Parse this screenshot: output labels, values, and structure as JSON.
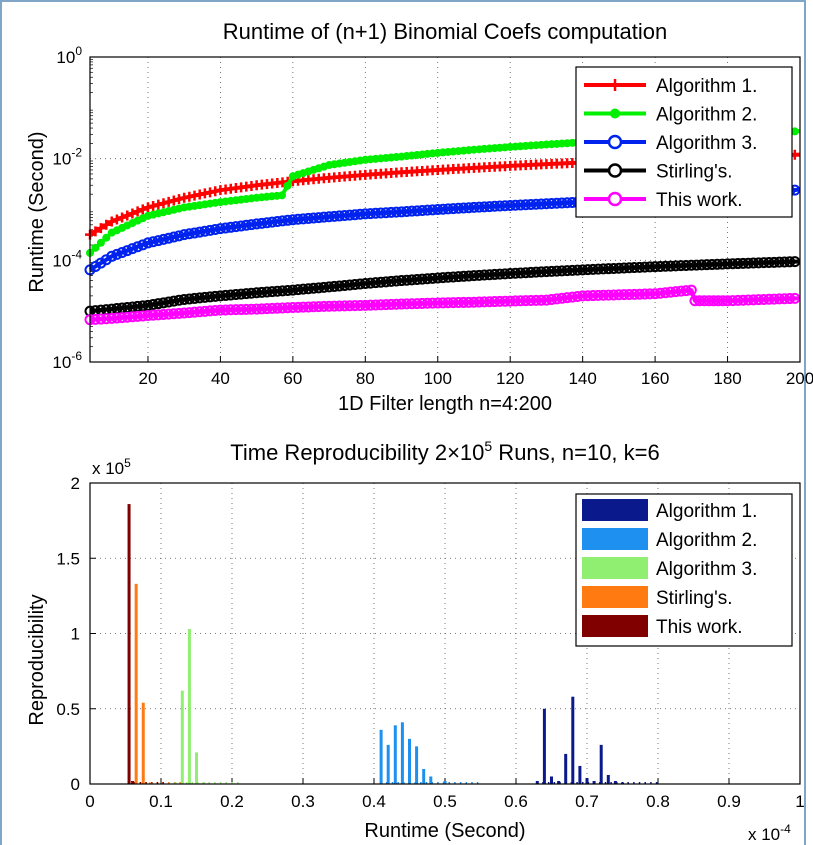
{
  "chart_data": [
    {
      "type": "line",
      "title": "Runtime of (n+1) Binomial Coefs computation",
      "xlabel": "1D Filter length n=4:200",
      "ylabel": "Runtime (Second)",
      "xlim": [
        4,
        200
      ],
      "ylim": [
        1e-06,
        1
      ],
      "yscale": "log",
      "grid": true,
      "legend_position": "top-right",
      "xticks": [
        "20",
        "40",
        "60",
        "80",
        "100",
        "120",
        "140",
        "160",
        "180",
        "200"
      ],
      "yticks": [
        {
          "base": "10",
          "exp": "0",
          "value": 1
        },
        {
          "base": "10",
          "exp": "-2",
          "value": 0.01
        },
        {
          "base": "10",
          "exp": "-4",
          "value": 0.0001
        },
        {
          "base": "10",
          "exp": "-6",
          "value": 1e-06
        }
      ],
      "series": [
        {
          "name": "Algorithm 1.",
          "color": "#ff0000",
          "marker": "plus",
          "x": [
            4,
            10,
            20,
            30,
            40,
            50,
            60,
            70,
            80,
            90,
            100,
            110,
            120,
            130,
            140,
            150,
            160,
            170,
            180,
            190,
            200
          ],
          "y": [
            0.00032,
            0.00058,
            0.0011,
            0.0017,
            0.0024,
            0.003,
            0.0036,
            0.0042,
            0.0048,
            0.0054,
            0.006,
            0.0066,
            0.0072,
            0.0078,
            0.0084,
            0.009,
            0.0096,
            0.0102,
            0.0108,
            0.0114,
            0.012
          ]
        },
        {
          "name": "Algorithm 2.",
          "color": "#00ee00",
          "marker": "dot",
          "x": [
            4,
            10,
            20,
            30,
            40,
            50,
            57,
            60,
            70,
            80,
            90,
            100,
            110,
            120,
            130,
            140,
            150,
            160,
            170,
            180,
            190,
            200
          ],
          "y": [
            0.00014,
            0.00035,
            0.00075,
            0.0011,
            0.0014,
            0.0017,
            0.0019,
            0.0045,
            0.0075,
            0.0095,
            0.011,
            0.013,
            0.015,
            0.017,
            0.019,
            0.021,
            0.023,
            0.025,
            0.027,
            0.029,
            0.031,
            0.035
          ]
        },
        {
          "name": "Algorithm 3.",
          "color": "#0022ee",
          "marker": "circle",
          "x": [
            4,
            10,
            20,
            30,
            40,
            50,
            60,
            70,
            80,
            90,
            100,
            110,
            120,
            130,
            140,
            150,
            160,
            170,
            180,
            190,
            200
          ],
          "y": [
            6.5e-05,
            0.00012,
            0.00022,
            0.00032,
            0.00042,
            0.00052,
            0.00063,
            0.00072,
            0.00082,
            0.0009,
            0.001,
            0.0011,
            0.0012,
            0.0013,
            0.0014,
            0.0015,
            0.0016,
            0.0017,
            0.0018,
            0.0019,
            0.0025
          ]
        },
        {
          "name": "Stirling's.",
          "color": "#000000",
          "marker": "circle",
          "x": [
            4,
            10,
            20,
            30,
            40,
            50,
            60,
            70,
            80,
            90,
            100,
            110,
            120,
            130,
            140,
            150,
            160,
            170,
            180,
            190,
            200
          ],
          "y": [
            1e-05,
            1.1e-05,
            1.3e-05,
            1.7e-05,
            2e-05,
            2.3e-05,
            2.6e-05,
            3e-05,
            3.5e-05,
            4e-05,
            4.5e-05,
            5e-05,
            5.5e-05,
            6e-05,
            6.5e-05,
            7e-05,
            7.5e-05,
            8e-05,
            8.5e-05,
            9e-05,
            9.5e-05
          ]
        },
        {
          "name": "This work.",
          "color": "#ff00ff",
          "marker": "circle",
          "x": [
            4,
            10,
            20,
            30,
            40,
            50,
            60,
            70,
            80,
            90,
            100,
            110,
            120,
            130,
            140,
            150,
            160,
            170,
            171,
            180,
            190,
            200
          ],
          "y": [
            6.8e-06,
            7.2e-06,
            8.2e-06,
            9.2e-06,
            1.05e-05,
            1.1e-05,
            1.18e-05,
            1.25e-05,
            1.3e-05,
            1.38e-05,
            1.45e-05,
            1.5e-05,
            1.58e-05,
            1.65e-05,
            2e-05,
            2.1e-05,
            2.2e-05,
            2.6e-05,
            1.6e-05,
            1.6e-05,
            1.7e-05,
            1.8e-05
          ]
        }
      ]
    },
    {
      "type": "bar",
      "title": "Time Reproducibility 2×10",
      "title_sup": "5",
      "title_tail": " Runs, n=10, k=6",
      "xlabel": "Runtime (Second)",
      "ylabel": "Reproducibility",
      "x_multiplier": {
        "base": "x 10",
        "exp": "-4"
      },
      "y_multiplier": {
        "base": "x 10",
        "exp": "5"
      },
      "xlim": [
        0,
        1
      ],
      "ylim": [
        0,
        2
      ],
      "grid": true,
      "legend_position": "top-right",
      "xticks": [
        "0",
        "0.1",
        "0.2",
        "0.3",
        "0.4",
        "0.5",
        "0.6",
        "0.7",
        "0.8",
        "0.9",
        "1"
      ],
      "yticks": [
        "0",
        "0.5",
        "1",
        "1.5",
        "2"
      ],
      "series": [
        {
          "name": "Algorithm 1.",
          "color": "#0a1a8c",
          "x": [
            0.63,
            0.64,
            0.65,
            0.66,
            0.67,
            0.68,
            0.69,
            0.7,
            0.71,
            0.72,
            0.73,
            0.74,
            0.75
          ],
          "y": [
            0.02,
            0.5,
            0.05,
            0.02,
            0.2,
            0.58,
            0.12,
            0.04,
            0.02,
            0.26,
            0.06,
            0.02,
            0.01
          ]
        },
        {
          "name": "Algorithm 2.",
          "color": "#1e90f0",
          "x": [
            0.41,
            0.42,
            0.43,
            0.44,
            0.45,
            0.46,
            0.47,
            0.48,
            0.5
          ],
          "y": [
            0.36,
            0.26,
            0.39,
            0.41,
            0.3,
            0.25,
            0.1,
            0.05,
            0.02
          ]
        },
        {
          "name": "Algorithm 3.",
          "color": "#90ee70",
          "x": [
            0.12,
            0.13,
            0.14,
            0.15,
            0.16
          ],
          "y": [
            0.01,
            0.62,
            1.03,
            0.21,
            0.01
          ]
        },
        {
          "name": "Stirling's.",
          "color": "#ff7a10",
          "x": [
            0.055,
            0.065,
            0.075,
            0.085
          ],
          "y": [
            0.02,
            1.33,
            0.54,
            0.01
          ]
        },
        {
          "name": "This work.",
          "color": "#800000",
          "x": [
            0.055,
            0.06
          ],
          "y": [
            1.86,
            0.02
          ]
        }
      ]
    }
  ]
}
